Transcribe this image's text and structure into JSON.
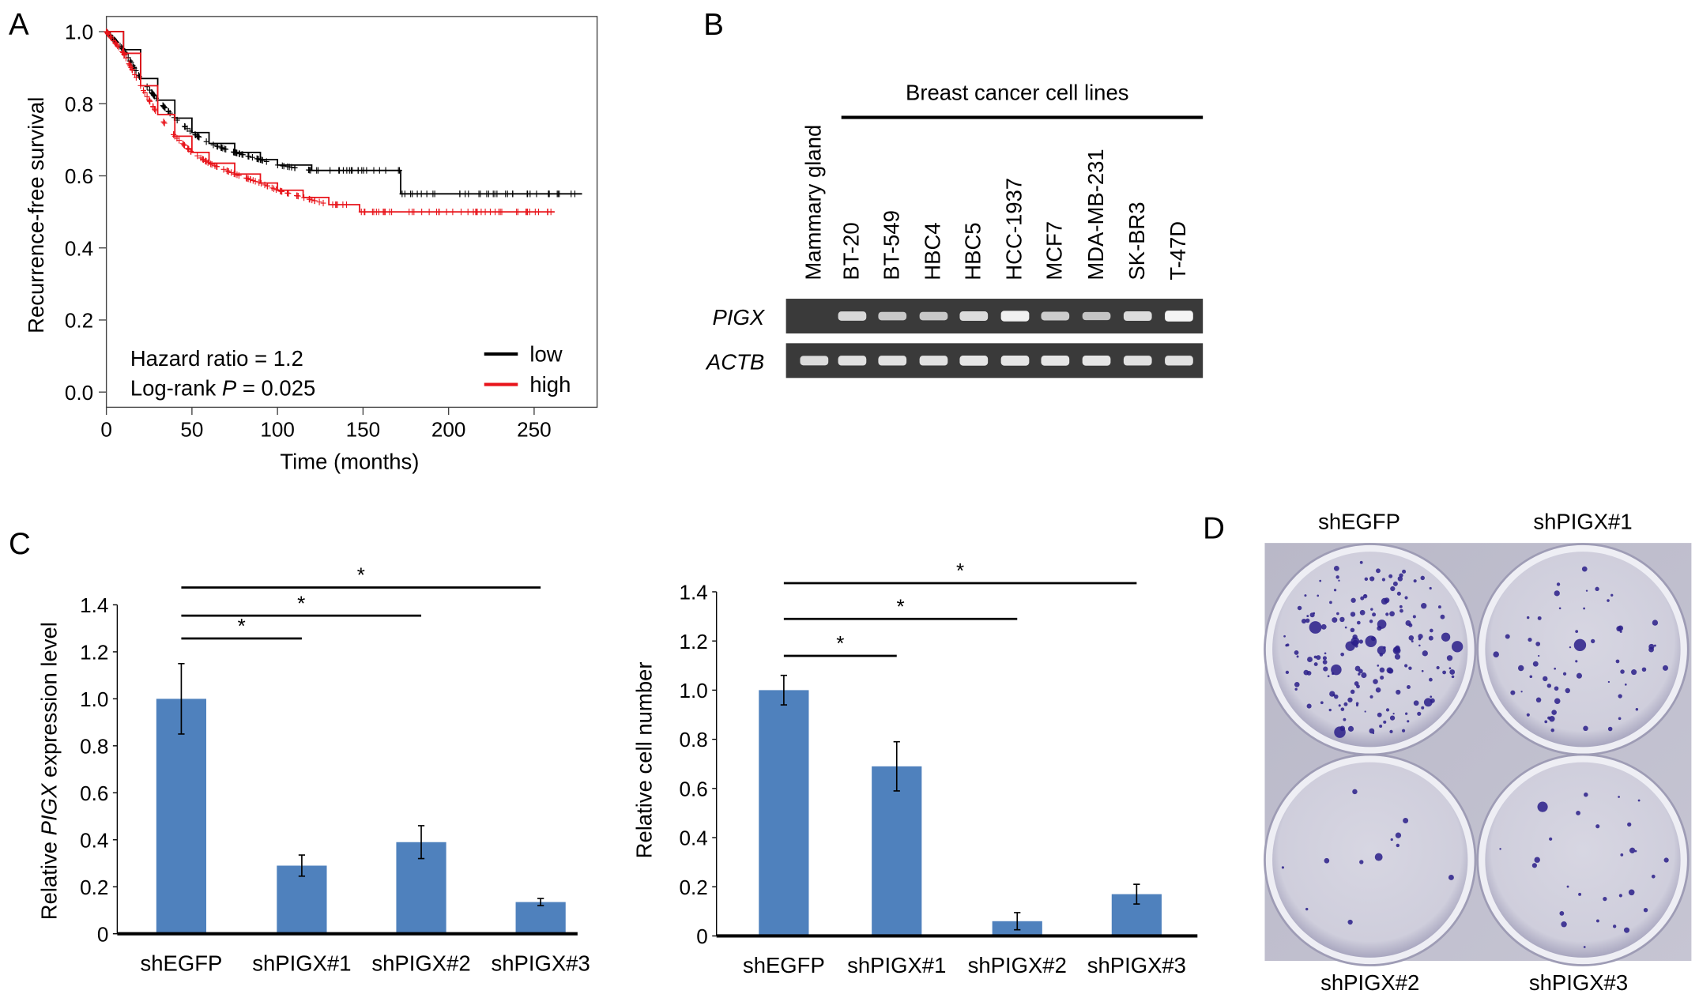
{
  "panels": {
    "a": "A",
    "b": "B",
    "c": "C",
    "d": "D"
  },
  "chart_data": [
    {
      "type": "line",
      "panel": "A",
      "xlabel": "Time (months)",
      "ylabel": "Recurrence-free survival",
      "xlim": [
        0,
        280
      ],
      "ylim": [
        0,
        1.0
      ],
      "xticks": [
        "0",
        "50",
        "100",
        "150",
        "200",
        "250"
      ],
      "yticks": [
        "0.0",
        "0.2",
        "0.4",
        "0.6",
        "0.8",
        "1.0"
      ],
      "legend": {
        "position": "bottom-right"
      },
      "annotation": {
        "hazard": "Hazard ratio = 1.2",
        "logrank_prefix": "Log-rank ",
        "logrank_p": "P",
        "logrank_suffix": " = 0.025"
      },
      "series": [
        {
          "name": "low",
          "color": "#000000",
          "x": [
            0,
            10,
            20,
            30,
            40,
            50,
            60,
            75,
            90,
            100,
            120,
            172,
            172,
            278
          ],
          "y": [
            1.0,
            0.95,
            0.87,
            0.81,
            0.76,
            0.72,
            0.69,
            0.665,
            0.645,
            0.63,
            0.615,
            0.615,
            0.55,
            0.55
          ]
        },
        {
          "name": "high",
          "color": "#e8141b",
          "x": [
            0,
            10,
            20,
            30,
            40,
            50,
            60,
            75,
            90,
            100,
            115,
            130,
            148,
            148,
            262
          ],
          "y": [
            1.0,
            0.94,
            0.85,
            0.77,
            0.71,
            0.665,
            0.635,
            0.605,
            0.58,
            0.56,
            0.54,
            0.52,
            0.52,
            0.5,
            0.5
          ]
        }
      ]
    },
    {
      "type": "bar",
      "panel": "C",
      "ylabel_prefix": "Relative ",
      "ylabel_italic": "PIGX",
      "ylabel_suffix": " expression level",
      "categories": [
        "shEGFP",
        "shPIGX#1",
        "shPIGX#2",
        "shPIGX#3"
      ],
      "values": [
        1.0,
        0.29,
        0.39,
        0.135
      ],
      "errors": [
        0.15,
        0.045,
        0.07,
        0.015
      ],
      "ylim": [
        0,
        1.4
      ],
      "yticks": [
        "0",
        "0.2",
        "0.4",
        "0.6",
        "0.8",
        "1.0",
        "1.2",
        "1.4"
      ],
      "color": "#4f81bd",
      "significance": [
        {
          "from": "shEGFP",
          "to": "shPIGX#1",
          "label": "*"
        },
        {
          "from": "shEGFP",
          "to": "shPIGX#2",
          "label": "*"
        },
        {
          "from": "shEGFP",
          "to": "shPIGX#3",
          "label": "*"
        }
      ]
    },
    {
      "type": "bar",
      "panel": "C",
      "ylabel": "Relative cell number",
      "categories": [
        "shEGFP",
        "shPIGX#1",
        "shPIGX#2",
        "shPIGX#3"
      ],
      "values": [
        1.0,
        0.69,
        0.06,
        0.17
      ],
      "errors": [
        0.06,
        0.1,
        0.035,
        0.04
      ],
      "ylim": [
        0,
        1.4
      ],
      "yticks": [
        "0",
        "0.2",
        "0.4",
        "0.6",
        "0.8",
        "1.0",
        "1.2",
        "1.4"
      ],
      "color": "#4f81bd",
      "significance": [
        {
          "from": "shEGFP",
          "to": "shPIGX#1",
          "label": "*"
        },
        {
          "from": "shEGFP",
          "to": "shPIGX#2",
          "label": "*"
        },
        {
          "from": "shEGFP",
          "to": "shPIGX#3",
          "label": "*"
        }
      ]
    }
  ],
  "gel": {
    "group_label": "Breast cancer cell lines",
    "lanes": [
      "Mammary gland",
      "BT-20",
      "BT-549",
      "HBC4",
      "HBC5",
      "HCC-1937",
      "MCF7",
      "MDA-MB-231",
      "SK-BR3",
      "T-47D"
    ],
    "genes": [
      {
        "name": "PIGX",
        "intensity": [
          0,
          0.7,
          0.55,
          0.55,
          0.75,
          0.95,
          0.6,
          0.5,
          0.75,
          1.0
        ]
      },
      {
        "name": "ACTB",
        "intensity": [
          0.75,
          0.8,
          0.8,
          0.8,
          0.85,
          0.85,
          0.85,
          0.85,
          0.8,
          0.8
        ]
      }
    ]
  },
  "plate": {
    "wells": [
      "shEGFP",
      "shPIGX#1",
      "shPIGX#2",
      "shPIGX#3"
    ],
    "colony_color": "#2a1f8a"
  }
}
